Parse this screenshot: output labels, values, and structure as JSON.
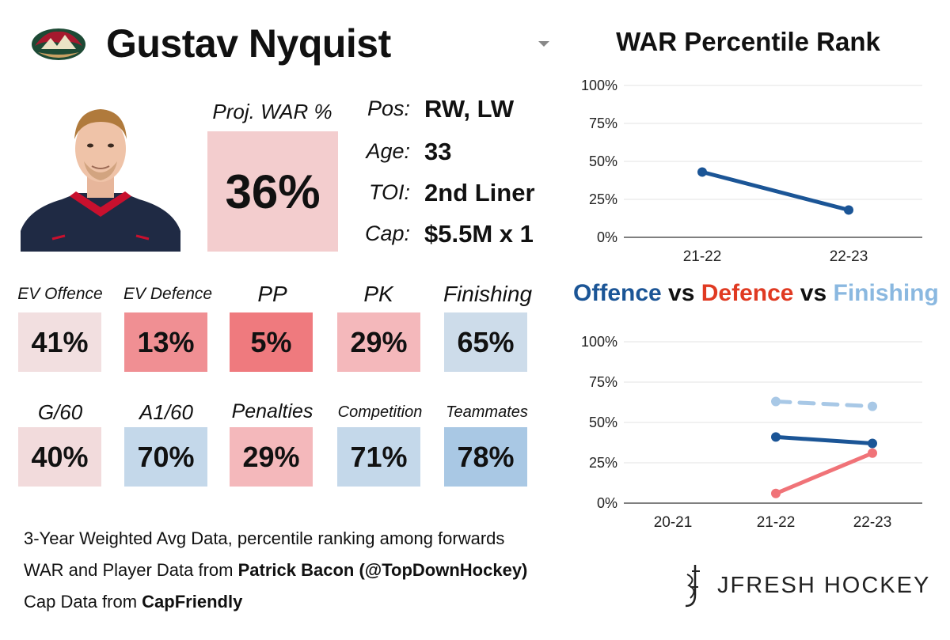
{
  "player": {
    "name": "Gustav Nyquist",
    "team_logo": "wild-logo-icon"
  },
  "projection": {
    "label": "Proj. WAR %",
    "value": "36%",
    "color": "#f3cdce"
  },
  "info": [
    {
      "label": "Pos:",
      "value": "RW, LW"
    },
    {
      "label": "Age:",
      "value": "33"
    },
    {
      "label": "TOI:",
      "value": "2nd Liner"
    },
    {
      "label": "Cap:",
      "value": "$5.5M x 1"
    }
  ],
  "stats_row1": [
    {
      "label": "EV Offence",
      "value": "41%",
      "color": "#f2dfe0"
    },
    {
      "label": "EV Defence",
      "value": "13%",
      "color": "#f08f93"
    },
    {
      "label": "PP",
      "value": "5%",
      "color": "#ef7a7e"
    },
    {
      "label": "PK",
      "value": "29%",
      "color": "#f4b8bb"
    },
    {
      "label": "Finishing",
      "value": "65%",
      "color": "#cddcea"
    }
  ],
  "stats_row2": [
    {
      "label": "G/60",
      "value": "40%",
      "color": "#f2dbdc"
    },
    {
      "label": "A1/60",
      "value": "70%",
      "color": "#c4d8ea"
    },
    {
      "label": "Penalties",
      "value": "29%",
      "color": "#f4b8bb"
    },
    {
      "label": "Competition",
      "value": "71%",
      "color": "#c4d8ea"
    },
    {
      "label": "Teammates",
      "value": "78%",
      "color": "#a9c8e4"
    }
  ],
  "footer": {
    "line1": "3-Year Weighted Avg Data, percentile ranking among forwards",
    "line2_prefix": "WAR and Player Data from ",
    "line2_bold": "Patrick Bacon (@TopDownHockey)",
    "line3_prefix": "Cap Data from ",
    "line3_bold": "CapFriendly"
  },
  "brand": {
    "name": "JFRESH HOCKEY"
  },
  "chart2_title": {
    "offence": "Offence",
    "vs1": " vs ",
    "defence": "Defence",
    "vs2": " vs ",
    "finishing": "Finishing",
    "offence_color": "#1b5596",
    "defence_color": "#e03a22",
    "finishing_color": "#8ab8e0"
  },
  "chart_data": [
    {
      "type": "line",
      "title": "WAR Percentile Rank",
      "categories": [
        "21-22",
        "22-23"
      ],
      "series": [
        {
          "name": "WAR",
          "values": [
            43,
            18
          ],
          "color": "#1b5596",
          "dashed": false
        }
      ],
      "ylim": [
        0,
        100
      ],
      "yticks": [
        "0%",
        "25%",
        "50%",
        "75%",
        "100%"
      ],
      "xlabel": "",
      "ylabel": "",
      "grid": true
    },
    {
      "type": "line",
      "title": "Offence vs Defence vs Finishing",
      "categories": [
        "20-21",
        "21-22",
        "22-23"
      ],
      "series": [
        {
          "name": "Offence",
          "values": [
            null,
            41,
            37
          ],
          "color": "#1b5596",
          "dashed": false
        },
        {
          "name": "Defence",
          "values": [
            null,
            6,
            31
          ],
          "color": "#f07378",
          "dashed": false
        },
        {
          "name": "Finishing",
          "values": [
            null,
            63,
            60
          ],
          "color": "#a8c8e6",
          "dashed": true
        }
      ],
      "ylim": [
        0,
        100
      ],
      "yticks": [
        "0%",
        "25%",
        "50%",
        "75%",
        "100%"
      ],
      "xlabel": "",
      "ylabel": "",
      "grid": true
    }
  ]
}
